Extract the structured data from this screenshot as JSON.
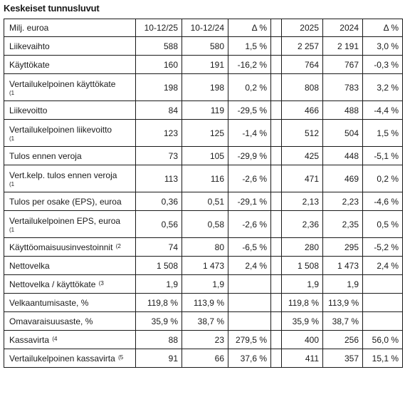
{
  "title": "Keskeiset tunnusluvut",
  "header": [
    "Milj. euroa",
    "10-12/25",
    "10-12/24",
    "Δ %",
    "",
    "2025",
    "2024",
    "Δ %"
  ],
  "rows": [
    {
      "label": "Liikevaihto",
      "fn": "",
      "fn_block": "",
      "values": [
        "588",
        "580",
        "1,5 %",
        "2 257",
        "2 191",
        "3,0 %"
      ]
    },
    {
      "label": "Käyttökate",
      "fn": "",
      "fn_block": "",
      "values": [
        "160",
        "191",
        "-16,2 %",
        "764",
        "767",
        "-0,3 %"
      ]
    },
    {
      "label": "Vertailukelpoinen käyttökate",
      "fn": "",
      "fn_block": "(1",
      "values": [
        "198",
        "198",
        "0,2 %",
        "808",
        "783",
        "3,2 %"
      ]
    },
    {
      "label": "Liikevoitto",
      "fn": "",
      "fn_block": "",
      "values": [
        "84",
        "119",
        "-29,5 %",
        "466",
        "488",
        "-4,4 %"
      ]
    },
    {
      "label": "Vertailukelpoinen liikevoitto",
      "fn": "",
      "fn_block": "(1",
      "values": [
        "123",
        "125",
        "-1,4 %",
        "512",
        "504",
        "1,5 %"
      ]
    },
    {
      "label": "Tulos ennen veroja",
      "fn": "",
      "fn_block": "",
      "values": [
        "73",
        "105",
        "-29,9 %",
        "425",
        "448",
        "-5,1 %"
      ]
    },
    {
      "label": "Vert.kelp. tulos ennen veroja",
      "fn": "",
      "fn_block": "(1",
      "values": [
        "113",
        "116",
        "-2,6 %",
        "471",
        "469",
        "0,2 %"
      ]
    },
    {
      "label": "Tulos per osake (EPS), euroa",
      "fn": "",
      "fn_block": "",
      "values": [
        "0,36",
        "0,51",
        "-29,1 %",
        "2,13",
        "2,23",
        "-4,6 %"
      ]
    },
    {
      "label": "Vertailukelpoinen EPS, euroa",
      "fn": "",
      "fn_block": "(1",
      "values": [
        "0,56",
        "0,58",
        "-2,6 %",
        "2,36",
        "2,35",
        "0,5 %"
      ]
    },
    {
      "label": "Käyttöomaisuusinvestoinnit",
      "fn": "(2",
      "fn_block": "",
      "values": [
        "74",
        "80",
        "-6,5 %",
        "280",
        "295",
        "-5,2 %"
      ]
    },
    {
      "label": "Nettovelka",
      "fn": "",
      "fn_block": "",
      "values": [
        "1 508",
        "1 473",
        "2,4 %",
        "1 508",
        "1 473",
        "2,4 %"
      ]
    },
    {
      "label": "Nettovelka / käyttökate",
      "fn": "(3",
      "fn_block": "",
      "values": [
        "1,9",
        "1,9",
        "",
        "1,9",
        "1,9",
        ""
      ]
    },
    {
      "label": "Velkaantumisaste, %",
      "fn": "",
      "fn_block": "",
      "values": [
        "119,8 %",
        "113,9 %",
        "",
        "119,8 %",
        "113,9 %",
        ""
      ]
    },
    {
      "label": "Omavaraisuusaste, %",
      "fn": "",
      "fn_block": "",
      "values": [
        "35,9 %",
        "38,7 %",
        "",
        "35,9 %",
        "38,7 %",
        ""
      ]
    },
    {
      "label": "Kassavirta",
      "fn": "(4",
      "fn_block": "",
      "values": [
        "88",
        "23",
        "279,5 %",
        "400",
        "256",
        "56,0 %"
      ]
    },
    {
      "label": "Vertailukelpoinen kassavirta",
      "fn": "(5",
      "fn_block": "",
      "values": [
        "91",
        "66",
        "37,6 %",
        "411",
        "357",
        "15,1 %"
      ]
    }
  ]
}
